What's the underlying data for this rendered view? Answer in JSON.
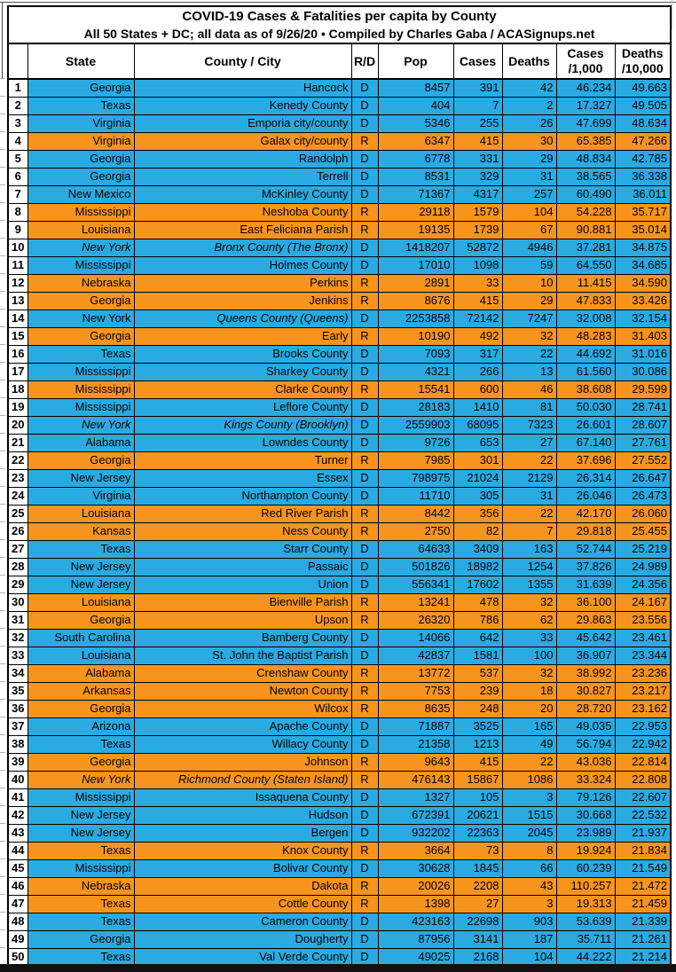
{
  "title": {
    "line1": "COVID-19 Cases & Fatalities per capita by County",
    "line2": "All 50 States + DC; all data as of 9/26/20 • Compiled by Charles Gaba / ACASignups.net"
  },
  "chart_data": {
    "type": "table",
    "colors": {
      "dem_blue": "#29ABE2",
      "rep_orange": "#F7941E",
      "highlight_yellow": "#FFFF00",
      "border_black": "#000000"
    },
    "columns": {
      "rank": "",
      "state": "State",
      "county": "County / City",
      "rd": "R/D",
      "pop": "Pop",
      "cases": "Cases",
      "deaths": "Deaths",
      "cases_per_line1": "Cases",
      "cases_per_line2": "/1,000",
      "deaths_per_line1": "Deaths",
      "deaths_per_line2": "/10,000"
    },
    "rows": [
      {
        "rank": 1,
        "state": "Georgia",
        "county": "Hancock",
        "rd": "D",
        "pop": "8457",
        "cases": "391",
        "deaths": "42",
        "cases_per_1000": "46.234",
        "deaths_per_10000": "49.663"
      },
      {
        "rank": 2,
        "state": "Texas",
        "county": "Kenedy County",
        "rd": "D",
        "pop": "404",
        "cases": "7",
        "deaths": "2",
        "cases_per_1000": "17.327",
        "deaths_per_10000": "49.505"
      },
      {
        "rank": 3,
        "state": "Virginia",
        "county": "Emporia city/county",
        "rd": "D",
        "pop": "5346",
        "cases": "255",
        "deaths": "26",
        "cases_per_1000": "47.699",
        "deaths_per_10000": "48.634"
      },
      {
        "rank": 4,
        "state": "Virginia",
        "county": "Galax city/county",
        "rd": "R",
        "pop": "6347",
        "cases": "415",
        "deaths": "30",
        "cases_per_1000": "65.385",
        "deaths_per_10000": "47.266"
      },
      {
        "rank": 5,
        "state": "Georgia",
        "county": "Randolph",
        "rd": "D",
        "pop": "6778",
        "cases": "331",
        "deaths": "29",
        "cases_per_1000": "48.834",
        "deaths_per_10000": "42.785"
      },
      {
        "rank": 6,
        "state": "Georgia",
        "county": "Terrell",
        "rd": "D",
        "pop": "8531",
        "cases": "329",
        "deaths": "31",
        "cases_per_1000": "38.565",
        "deaths_per_10000": "36.338"
      },
      {
        "rank": 7,
        "state": "New Mexico",
        "county": "McKinley County",
        "rd": "D",
        "pop": "71367",
        "cases": "4317",
        "deaths": "257",
        "cases_per_1000": "60.490",
        "deaths_per_10000": "36.011"
      },
      {
        "rank": 8,
        "state": "Mississippi",
        "county": "Neshoba County",
        "rd": "R",
        "pop": "29118",
        "cases": "1579",
        "deaths": "104",
        "cases_per_1000": "54.228",
        "deaths_per_10000": "35.717"
      },
      {
        "rank": 9,
        "state": "Louisiana",
        "county": "East Feliciana Parish",
        "rd": "R",
        "pop": "19135",
        "cases": "1739",
        "deaths": "67",
        "cases_per_1000": "90.881",
        "deaths_per_10000": "35.014"
      },
      {
        "rank": 10,
        "state": "New York",
        "county": "Bronx County (The Bronx)",
        "rd": "D",
        "pop": "1418207",
        "cases": "52872",
        "deaths": "4946",
        "cases_per_1000": "37.281",
        "deaths_per_10000": "34.875",
        "state_italic": true,
        "county_italic": true
      },
      {
        "rank": 11,
        "state": "Mississippi",
        "county": "Holmes County",
        "rd": "D",
        "pop": "17010",
        "cases": "1098",
        "deaths": "59",
        "cases_per_1000": "64.550",
        "deaths_per_10000": "34.685"
      },
      {
        "rank": 12,
        "state": "Nebraska",
        "county": "Perkins",
        "rd": "R",
        "pop": "2891",
        "cases": "33",
        "deaths": "10",
        "cases_per_1000": "11.415",
        "deaths_per_10000": "34.590"
      },
      {
        "rank": 13,
        "state": "Georgia",
        "county": "Jenkins",
        "rd": "R",
        "pop": "8676",
        "cases": "415",
        "deaths": "29",
        "cases_per_1000": "47.833",
        "deaths_per_10000": "33.426"
      },
      {
        "rank": 14,
        "state": "New York",
        "county": "Queens County (Queens)",
        "rd": "D",
        "pop": "2253858",
        "cases": "72142",
        "deaths": "7247",
        "cases_per_1000": "32.008",
        "deaths_per_10000": "32.154",
        "county_italic": true
      },
      {
        "rank": 15,
        "state": "Georgia",
        "county": "Early",
        "rd": "R",
        "pop": "10190",
        "cases": "492",
        "deaths": "32",
        "cases_per_1000": "48.283",
        "deaths_per_10000": "31.403"
      },
      {
        "rank": 16,
        "state": "Texas",
        "county": "Brooks County",
        "rd": "D",
        "pop": "7093",
        "cases": "317",
        "deaths": "22",
        "cases_per_1000": "44.692",
        "deaths_per_10000": "31.016"
      },
      {
        "rank": 17,
        "state": "Mississippi",
        "county": "Sharkey County",
        "rd": "D",
        "pop": "4321",
        "cases": "266",
        "deaths": "13",
        "cases_per_1000": "61.560",
        "deaths_per_10000": "30.086"
      },
      {
        "rank": 18,
        "state": "Mississippi",
        "county": "Clarke County",
        "rd": "R",
        "pop": "15541",
        "cases": "600",
        "deaths": "46",
        "cases_per_1000": "38.608",
        "deaths_per_10000": "29.599"
      },
      {
        "rank": 19,
        "state": "Mississippi",
        "county": "Leflore County",
        "rd": "D",
        "pop": "28183",
        "cases": "1410",
        "deaths": "81",
        "cases_per_1000": "50.030",
        "deaths_per_10000": "28.741"
      },
      {
        "rank": 20,
        "state": "New York",
        "county": "Kings County (Brooklyn)",
        "rd": "D",
        "pop": "2559903",
        "cases": "68095",
        "deaths": "7323",
        "cases_per_1000": "26.601",
        "deaths_per_10000": "28.607",
        "state_italic": true,
        "county_italic": true
      },
      {
        "rank": 21,
        "state": "Alabama",
        "county": "Lowndes County",
        "rd": "D",
        "pop": "9726",
        "cases": "653",
        "deaths": "27",
        "cases_per_1000": "67.140",
        "deaths_per_10000": "27.761"
      },
      {
        "rank": 22,
        "state": "Georgia",
        "county": "Turner",
        "rd": "R",
        "pop": "7985",
        "cases": "301",
        "deaths": "22",
        "cases_per_1000": "37.696",
        "deaths_per_10000": "27.552"
      },
      {
        "rank": 23,
        "state": "New Jersey",
        "county": "Essex",
        "rd": "D",
        "pop": "798975",
        "cases": "21024",
        "deaths": "2129",
        "cases_per_1000": "26.314",
        "deaths_per_10000": "26.647"
      },
      {
        "rank": 24,
        "state": "Virginia",
        "county": "Northampton County",
        "rd": "D",
        "pop": "11710",
        "cases": "305",
        "deaths": "31",
        "cases_per_1000": "26.046",
        "deaths_per_10000": "26.473"
      },
      {
        "rank": 25,
        "state": "Louisiana",
        "county": "Red River Parish",
        "rd": "R",
        "pop": "8442",
        "cases": "356",
        "deaths": "22",
        "cases_per_1000": "42.170",
        "deaths_per_10000": "26.060"
      },
      {
        "rank": 26,
        "state": "Kansas",
        "county": "Ness County",
        "rd": "R",
        "pop": "2750",
        "cases": "82",
        "deaths": "7",
        "cases_per_1000": "29.818",
        "deaths_per_10000": "25.455"
      },
      {
        "rank": 27,
        "state": "Texas",
        "county": "Starr County",
        "rd": "D",
        "pop": "64633",
        "cases": "3409",
        "deaths": "163",
        "cases_per_1000": "52.744",
        "deaths_per_10000": "25.219"
      },
      {
        "rank": 28,
        "state": "New Jersey",
        "county": "Passaic",
        "rd": "D",
        "pop": "501826",
        "cases": "18982",
        "deaths": "1254",
        "cases_per_1000": "37.826",
        "deaths_per_10000": "24.989"
      },
      {
        "rank": 29,
        "state": "New Jersey",
        "county": "Union",
        "rd": "D",
        "pop": "556341",
        "cases": "17602",
        "deaths": "1355",
        "cases_per_1000": "31.639",
        "deaths_per_10000": "24.356"
      },
      {
        "rank": 30,
        "state": "Louisiana",
        "county": "Bienville Parish",
        "rd": "R",
        "pop": "13241",
        "cases": "478",
        "deaths": "32",
        "cases_per_1000": "36.100",
        "deaths_per_10000": "24.167"
      },
      {
        "rank": 31,
        "state": "Georgia",
        "county": "Upson",
        "rd": "R",
        "pop": "26320",
        "cases": "786",
        "deaths": "62",
        "cases_per_1000": "29.863",
        "deaths_per_10000": "23.556"
      },
      {
        "rank": 32,
        "state": "South Carolina",
        "county": "Bamberg County",
        "rd": "D",
        "pop": "14066",
        "cases": "642",
        "deaths": "33",
        "cases_per_1000": "45.642",
        "deaths_per_10000": "23.461"
      },
      {
        "rank": 33,
        "state": "Louisiana",
        "county": "St. John the Baptist Parish",
        "rd": "D",
        "pop": "42837",
        "cases": "1581",
        "deaths": "100",
        "cases_per_1000": "36.907",
        "deaths_per_10000": "23.344"
      },
      {
        "rank": 34,
        "state": "Alabama",
        "county": "Crenshaw County",
        "rd": "R",
        "pop": "13772",
        "cases": "537",
        "deaths": "32",
        "cases_per_1000": "38.992",
        "deaths_per_10000": "23.236"
      },
      {
        "rank": 35,
        "state": "Arkansas",
        "county": "Newton County",
        "rd": "R",
        "pop": "7753",
        "cases": "239",
        "deaths": "18",
        "cases_per_1000": "30.827",
        "deaths_per_10000": "23.217"
      },
      {
        "rank": 36,
        "state": "Georgia",
        "county": "Wilcox",
        "rd": "R",
        "pop": "8635",
        "cases": "248",
        "deaths": "20",
        "cases_per_1000": "28.720",
        "deaths_per_10000": "23.162"
      },
      {
        "rank": 37,
        "state": "Arizona",
        "county": "Apache County",
        "rd": "D",
        "pop": "71887",
        "cases": "3525",
        "deaths": "165",
        "cases_per_1000": "49.035",
        "deaths_per_10000": "22.953"
      },
      {
        "rank": 38,
        "state": "Texas",
        "county": "Willacy County",
        "rd": "D",
        "pop": "21358",
        "cases": "1213",
        "deaths": "49",
        "cases_per_1000": "56.794",
        "deaths_per_10000": "22.942"
      },
      {
        "rank": 39,
        "state": "Georgia",
        "county": "Johnson",
        "rd": "R",
        "pop": "9643",
        "cases": "415",
        "deaths": "22",
        "cases_per_1000": "43.036",
        "deaths_per_10000": "22.814"
      },
      {
        "rank": 40,
        "state": "New York",
        "county": "Richmond County (Staten Island)",
        "rd": "R",
        "pop": "476143",
        "cases": "15867",
        "deaths": "1086",
        "cases_per_1000": "33.324",
        "deaths_per_10000": "22.808",
        "state_italic": true,
        "county_italic": true
      },
      {
        "rank": 41,
        "state": "Mississippi",
        "county": "Issaquena County",
        "rd": "D",
        "pop": "1327",
        "cases": "105",
        "deaths": "3",
        "cases_per_1000": "79.126",
        "deaths_per_10000": "22.607"
      },
      {
        "rank": 42,
        "state": "New Jersey",
        "county": "Hudson",
        "rd": "D",
        "pop": "672391",
        "cases": "20621",
        "deaths": "1515",
        "cases_per_1000": "30.668",
        "deaths_per_10000": "22.532"
      },
      {
        "rank": 43,
        "state": "New Jersey",
        "county": "Bergen",
        "rd": "D",
        "pop": "932202",
        "cases": "22363",
        "deaths": "2045",
        "cases_per_1000": "23.989",
        "deaths_per_10000": "21.937"
      },
      {
        "rank": 44,
        "state": "Texas",
        "county": "Knox County",
        "rd": "R",
        "pop": "3664",
        "cases": "73",
        "deaths": "8",
        "cases_per_1000": "19.924",
        "deaths_per_10000": "21.834"
      },
      {
        "rank": 45,
        "state": "Mississippi",
        "county": "Bolivar County",
        "rd": "D",
        "pop": "30628",
        "cases": "1845",
        "deaths": "66",
        "cases_per_1000": "60.239",
        "deaths_per_10000": "21.549"
      },
      {
        "rank": 46,
        "state": "Nebraska",
        "county": "Dakota",
        "rd": "R",
        "pop": "20026",
        "cases": "2208",
        "deaths": "43",
        "cases_per_1000": "110.257",
        "deaths_per_10000": "21.472"
      },
      {
        "rank": 47,
        "state": "Texas",
        "county": "Cottle County",
        "rd": "R",
        "pop": "1398",
        "cases": "27",
        "deaths": "3",
        "cases_per_1000": "19.313",
        "deaths_per_10000": "21.459"
      },
      {
        "rank": 48,
        "state": "Texas",
        "county": "Cameron County",
        "rd": "D",
        "pop": "423163",
        "cases": "22698",
        "deaths": "903",
        "cases_per_1000": "53.639",
        "deaths_per_10000": "21.339"
      },
      {
        "rank": 49,
        "state": "Georgia",
        "county": "Dougherty",
        "rd": "D",
        "pop": "87956",
        "cases": "3141",
        "deaths": "187",
        "cases_per_1000": "35.711",
        "deaths_per_10000": "21.261"
      },
      {
        "rank": 50,
        "state": "Texas",
        "county": "Val Verde County",
        "rd": "D",
        "pop": "49025",
        "cases": "2168",
        "deaths": "104",
        "cases_per_1000": "44.222",
        "deaths_per_10000": "21.214"
      }
    ]
  }
}
